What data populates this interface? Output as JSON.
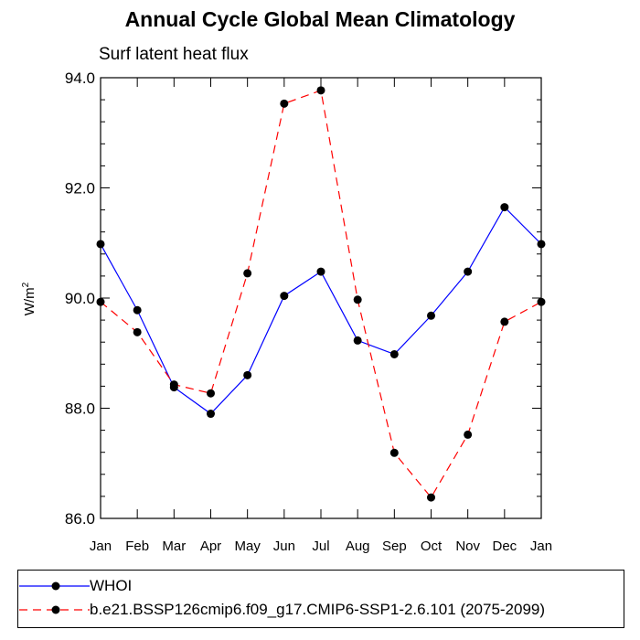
{
  "chart_data": {
    "type": "line",
    "title": "Annual Cycle Global Mean Climatology",
    "subtitle": "Surf latent heat flux",
    "ylabel": "W/m",
    "ylabel_superscript": "2",
    "categories": [
      "Jan",
      "Feb",
      "Mar",
      "Apr",
      "May",
      "Jun",
      "Jul",
      "Aug",
      "Sep",
      "Oct",
      "Nov",
      "Dec",
      "Jan"
    ],
    "ylim": [
      86.0,
      94.0
    ],
    "yticks": [
      "86.0",
      "88.0",
      "90.0",
      "92.0",
      "94.0"
    ],
    "series": [
      {
        "name": "WHOI",
        "color": "#0000ff",
        "linestyle": "solid",
        "marker": "filled-circle",
        "values": [
          90.98,
          89.78,
          88.38,
          87.9,
          88.6,
          90.04,
          90.48,
          89.23,
          88.98,
          89.68,
          90.48,
          91.65,
          90.98
        ]
      },
      {
        "name": "b.e21.BSSP126cmip6.f09_g17.CMIP6-SSP1-2.6.101 (2075-2099)",
        "color": "#ff0000",
        "linestyle": "dashed",
        "marker": "filled-circle",
        "values": [
          89.93,
          89.38,
          88.43,
          88.27,
          90.45,
          93.53,
          93.77,
          89.97,
          87.19,
          86.38,
          87.52,
          89.57,
          89.93
        ]
      }
    ],
    "legend_position": "bottom",
    "grid": false
  }
}
